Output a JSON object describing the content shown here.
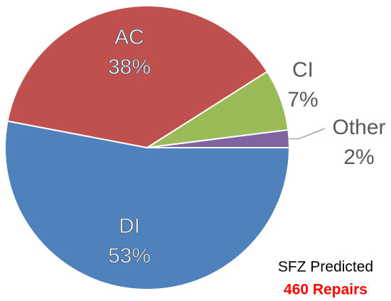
{
  "chart_data": {
    "type": "pie",
    "categories": [
      "DI",
      "AC",
      "CI",
      "Other"
    ],
    "values": [
      53,
      38,
      7,
      2
    ],
    "value_labels": [
      "53%",
      "38%",
      "7%",
      "2%"
    ],
    "colors": [
      "#4f81bd",
      "#c0504d",
      "#9bbb59",
      "#8064a2"
    ],
    "annotations": [
      {
        "text": "SFZ Predicted",
        "color": "#000000",
        "bold": false
      },
      {
        "text": "460 Repairs",
        "color": "#ff0000",
        "bold": true
      }
    ]
  }
}
